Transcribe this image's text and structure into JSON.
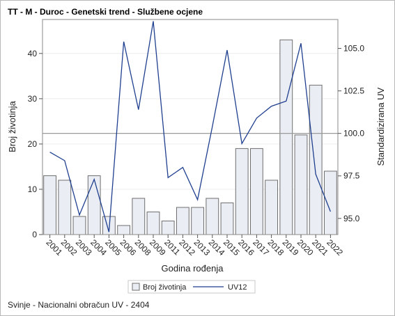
{
  "title": "TT - M - Duroc - Genetski trend - Službene ocjene",
  "footer": "Svinje - Nacionalni obračun UV - 2404",
  "chart_data": {
    "type": "bar+line",
    "title": "TT - M - Duroc - Genetski trend - Službene ocjene",
    "xlabel": "Godina rođenja",
    "ylabel_left": "Broj životinja",
    "ylabel_right": "Standardizirana UV",
    "categories": [
      "2001",
      "2002",
      "2003",
      "2004",
      "2005",
      "2006",
      "2008",
      "2009",
      "2011",
      "2012",
      "2013",
      "2014",
      "2015",
      "2016",
      "2017",
      "2018",
      "2019",
      "2020",
      "2021",
      "2022"
    ],
    "series": [
      {
        "name": "Broj životinja",
        "type": "bar",
        "axis": "left",
        "values": [
          13,
          12,
          4,
          13,
          4,
          2,
          8,
          5,
          3,
          6,
          6,
          8,
          7,
          19,
          19,
          12,
          43,
          22,
          33,
          14
        ]
      },
      {
        "name": "UV12",
        "type": "line",
        "axis": "right",
        "values": [
          98.9,
          98.4,
          95.2,
          97.3,
          94.2,
          105.4,
          101.4,
          106.6,
          97.4,
          98.0,
          96.1,
          100.4,
          104.9,
          99.4,
          100.9,
          101.6,
          101.9,
          105.3,
          97.6,
          95.4
        ]
      }
    ],
    "ylim_left": [
      0,
      47.5
    ],
    "yticks_left": [
      0,
      10,
      20,
      30,
      40
    ],
    "ylim_right": [
      94.05,
      106.7
    ],
    "yticks_right": [
      "95.0",
      "97.5",
      "100.0",
      "102.5",
      "105.0"
    ],
    "reference_line_right": 100.0,
    "grid": true,
    "legend_position": "bottom",
    "colors": {
      "bar_fill": "#eaedf3",
      "bar_stroke": "#6e6e6e",
      "line": "#1f3f8f",
      "ref_line": "#9a9a9a",
      "grid": "#ececec"
    }
  }
}
